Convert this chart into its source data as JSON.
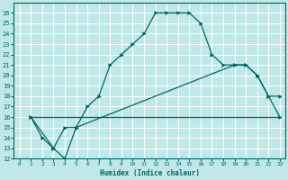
{
  "title": "",
  "xlabel": "Humidex (Indice chaleur)",
  "bg_color": "#c0e8e8",
  "grid_color": "#ffffff",
  "line_color": "#006666",
  "xlim": [
    -0.5,
    23.5
  ],
  "ylim": [
    12,
    27
  ],
  "xticks": [
    0,
    1,
    2,
    3,
    4,
    5,
    6,
    7,
    8,
    9,
    10,
    11,
    12,
    13,
    14,
    15,
    16,
    17,
    18,
    19,
    20,
    21,
    22,
    23
  ],
  "yticks": [
    12,
    13,
    14,
    15,
    16,
    17,
    18,
    19,
    20,
    21,
    22,
    23,
    24,
    25,
    26
  ],
  "line1_x": [
    1,
    2,
    3,
    4,
    5,
    6,
    7,
    8,
    9,
    10,
    11,
    12,
    13,
    14,
    15,
    16,
    17,
    18,
    19,
    20,
    21,
    22,
    23
  ],
  "line1_y": [
    16,
    14,
    13,
    12,
    15,
    17,
    18,
    21,
    22,
    23,
    24,
    26,
    26,
    26,
    26,
    25,
    22,
    21,
    21,
    21,
    20,
    18,
    16
  ],
  "line2_x": [
    1,
    3,
    4,
    5,
    19,
    20,
    21,
    22,
    23
  ],
  "line2_y": [
    16,
    13,
    15,
    15,
    21,
    21,
    20,
    18,
    18
  ],
  "line3_x": [
    1,
    23
  ],
  "line3_y": [
    16,
    16
  ]
}
